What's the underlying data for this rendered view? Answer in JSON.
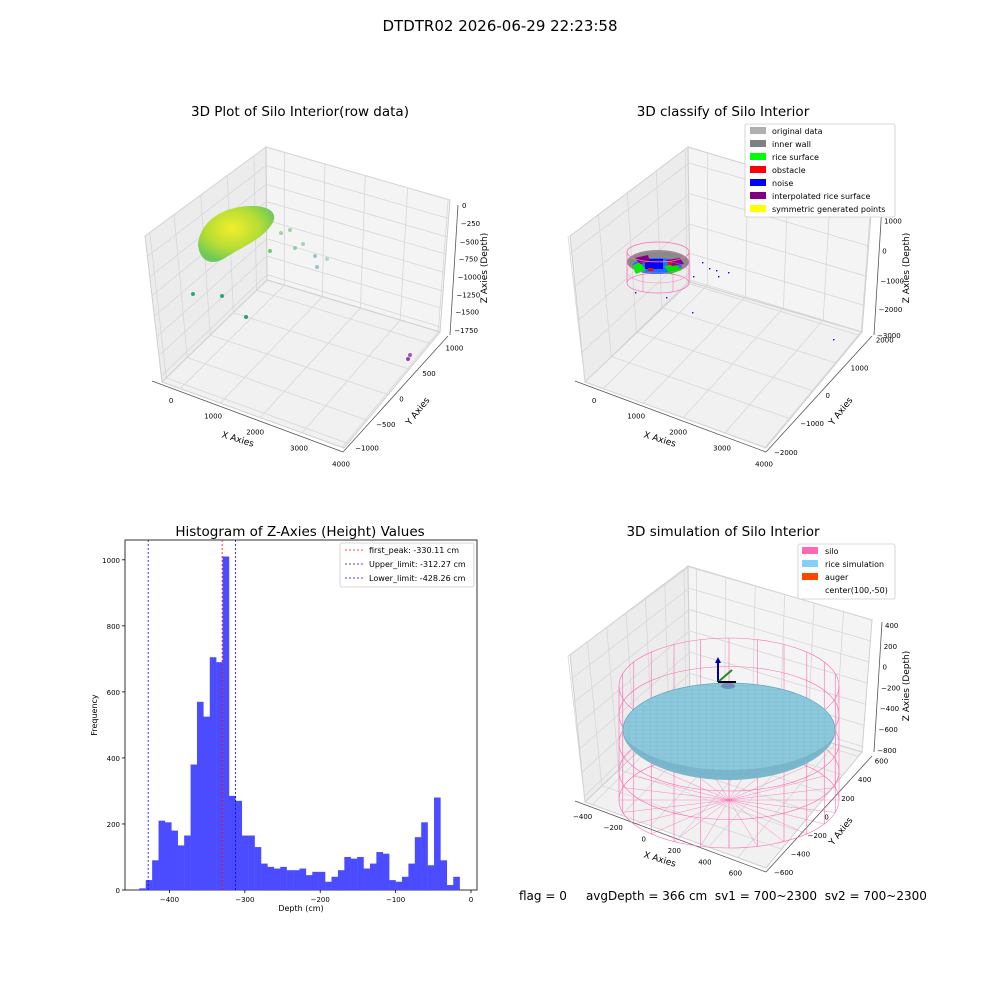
{
  "suptitle": "DTDTR02 2026-06-29 22:23:58",
  "footer": {
    "flag": "flag = 0",
    "avg_depth": "avgDepth = 366 cm",
    "sv1": "sv1 = 700~2300",
    "sv2": "sv2 = 700~2300"
  },
  "colors": {
    "hist_bar": "#4b4bff",
    "first_peak": "#ff0000",
    "limit": "#0000ff",
    "silo": "#ff69b4",
    "rice_sim": "#87cefa",
    "auger": "#ff4500",
    "classify": {
      "original_data": "#b0b0b0",
      "inner_wall": "#808080",
      "rice_surface": "#00ff00",
      "obstacle": "#ff0000",
      "noise": "#0000ff",
      "interpolated_rice_surface": "#800080",
      "symmetric_generated_points": "#ffff00"
    }
  },
  "chart_data": [
    {
      "type": "scatter",
      "projection": "3d",
      "title": "3D Plot of Silo Interior(row data)",
      "xlabel": "X Axies",
      "ylabel": "Y Axies",
      "zlabel": "Z Axies (Depth)",
      "x_ticks": [
        "0",
        "1000",
        "2000",
        "3000",
        "4000"
      ],
      "y_ticks": [
        "−1000",
        "−500",
        "0",
        "500",
        "1000"
      ],
      "z_ticks": [
        "0",
        "−250",
        "−500",
        "−750",
        "−1000",
        "−1250",
        "−1500",
        "−1750"
      ],
      "colormap": "viridis",
      "grid": true
    },
    {
      "type": "scatter",
      "projection": "3d",
      "title": "3D classify of Silo Interior",
      "xlabel": "X Axies",
      "ylabel": "Y Axies",
      "zlabel": "Z Axies (Depth)",
      "x_ticks": [
        "0",
        "1000",
        "2000",
        "3000",
        "4000"
      ],
      "y_ticks": [
        "−2000",
        "−1000",
        "0",
        "1000",
        "2000"
      ],
      "z_ticks": [
        "1000",
        "0",
        "−1000",
        "−2000",
        "−3000"
      ],
      "legend": [
        "original data",
        "inner wall",
        "rice surface",
        "obstacle",
        "noise",
        "interpolated rice surface",
        "symmetric generated points"
      ],
      "legend_position": "top-right",
      "grid": true
    },
    {
      "type": "bar",
      "title": "Histogram of Z-Axies (Height) Values",
      "xlabel": "Depth (cm)",
      "ylabel": "Frequency",
      "x_ticks": [
        "−400",
        "−300",
        "−200",
        "−100",
        "0"
      ],
      "y_ticks": [
        "0",
        "200",
        "400",
        "600",
        "800",
        "1000"
      ],
      "xlim": [
        -459,
        8
      ],
      "ylim": [
        0,
        1060
      ],
      "bin_start": -440,
      "bin_width": 8.5,
      "values": [
        5,
        30,
        90,
        210,
        205,
        180,
        135,
        165,
        380,
        570,
        525,
        705,
        690,
        1010,
        285,
        270,
        165,
        165,
        130,
        80,
        70,
        65,
        70,
        60,
        60,
        65,
        45,
        55,
        55,
        25,
        40,
        60,
        100,
        95,
        100,
        65,
        80,
        115,
        110,
        30,
        25,
        40,
        80,
        160,
        205,
        75,
        280,
        90,
        15,
        40
      ],
      "lines": [
        {
          "label": "first_peak: -330.11 cm",
          "x": -330.11,
          "style": "dashed",
          "color": "red"
        },
        {
          "label": "Upper_limit: -312.27 cm",
          "x": -312.27,
          "style": "dashed",
          "color": "blue"
        },
        {
          "label": "Lower_limit: -428.26 cm",
          "x": -428.26,
          "style": "dashed",
          "color": "blue"
        }
      ],
      "legend_position": "top-right",
      "grid": false
    },
    {
      "type": "surface",
      "projection": "3d",
      "title": "3D simulation of Silo Interior",
      "xlabel": "X Axies",
      "ylabel": "Y Axies",
      "zlabel": "Z Axies (Depth)",
      "x_ticks": [
        "−400",
        "−200",
        "0",
        "200",
        "400",
        "600"
      ],
      "y_ticks": [
        "−600",
        "−400",
        "−200",
        "0",
        "200",
        "400",
        "600"
      ],
      "z_ticks": [
        "400",
        "200",
        "0",
        "−200",
        "−400",
        "−600",
        "−800"
      ],
      "legend": [
        "silo",
        "rice simulation",
        "auger",
        "center(100,-50)"
      ],
      "legend_position": "top-right",
      "grid": true
    }
  ]
}
